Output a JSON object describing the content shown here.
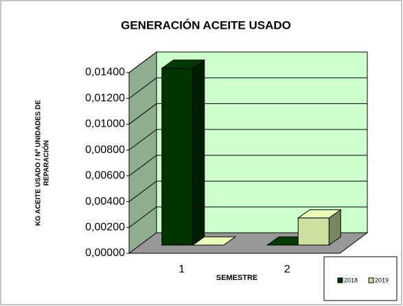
{
  "chart_data": {
    "type": "bar3d",
    "title": "GENERACIÓN ACEITE USADO",
    "x_label": "SEMESTRE",
    "y_label": [
      "KG ACEITE USADO / Nº UNIDADES DE",
      "REPARACIÓN"
    ],
    "categories": [
      "1",
      "2"
    ],
    "series": [
      {
        "name": "2018",
        "color": "#003300",
        "values": [
          0.0137,
          0
        ]
      },
      {
        "name": "2019",
        "color": "#cce0a0",
        "values": [
          0,
          0.0021
        ]
      }
    ],
    "ylim": [
      0,
      0.014
    ],
    "yticks": [
      {
        "value": 0,
        "label": "0,00000"
      },
      {
        "value": 0.002,
        "label": "0,00200"
      },
      {
        "value": 0.004,
        "label": "0,00400"
      },
      {
        "value": 0.006,
        "label": "0,00600"
      },
      {
        "value": 0.008,
        "label": "0,00800"
      },
      {
        "value": 0.01,
        "label": "0,01000"
      },
      {
        "value": 0.012,
        "label": "0,01200"
      },
      {
        "value": 0.014,
        "label": "0,01400"
      }
    ],
    "grid": true,
    "legend": "bottom-right"
  }
}
